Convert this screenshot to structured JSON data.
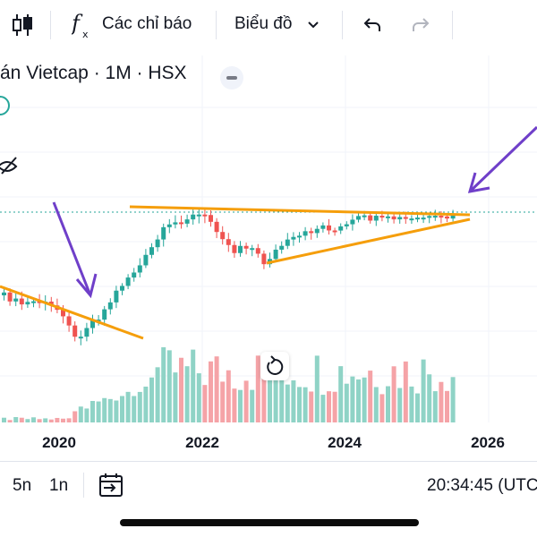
{
  "toolbar": {
    "indicators_label": "Các chỉ báo",
    "chart_type_label": "Biểu đồ"
  },
  "chart_header": {
    "title": "án Vietcap · 1M · HSX"
  },
  "x_axis": {
    "ticks": [
      "2020",
      "2022",
      "2024",
      "2026"
    ]
  },
  "footer": {
    "range_5y": "5n",
    "range_1y": "1n",
    "time": "20:34:45 (UTC"
  },
  "colors": {
    "up": "#26a69a",
    "down": "#ef5350",
    "volume_up": "#8fd3c6",
    "volume_down": "#f5a3a7",
    "trendline": "#f59e0b",
    "arrow": "#6f3fc9",
    "price_line": "#26a69a"
  },
  "icons": [
    "candles-icon",
    "formula-icon",
    "chevron-down-icon",
    "undo-icon",
    "redo-icon",
    "eye-off-icon",
    "date-range-icon",
    "reset-icon"
  ],
  "chart_data": {
    "type": "candlestick",
    "timeframe": "1M",
    "x_ticks": [
      "2020",
      "2022",
      "2024",
      "2026"
    ]
  }
}
